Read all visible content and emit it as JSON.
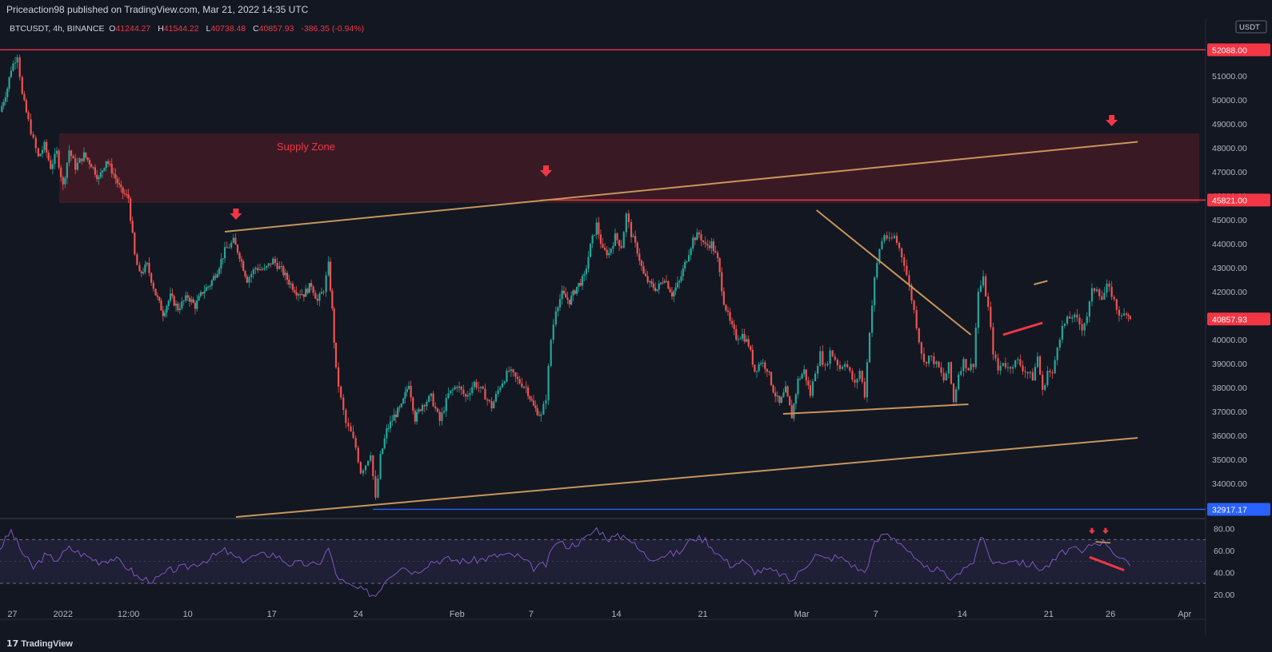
{
  "header": {
    "publisher_line": "Priceaction98 published on TradingView.com, Mar 21, 2022 14:35 UTC"
  },
  "legend": {
    "symbol": "BTCUSDT, 4h, BINANCE",
    "open_label": "O",
    "open": "41244.27",
    "high_label": "H",
    "high": "41544.22",
    "low_label": "L",
    "low": "40738.48",
    "close_label": "C",
    "close": "40857.93",
    "change": "-386.35 (-0.94%)"
  },
  "footer": {
    "brand": "TradingView",
    "logo_glyph": "17"
  },
  "colors": {
    "background": "#131722",
    "up_candle": "#26a69a",
    "down_candle": "#ef5350",
    "trendline": "#c8955a",
    "supply_zone": "#5a1e26",
    "resistance": "#f23645",
    "support": "#2962ff",
    "rsi_line": "#7e57c2"
  },
  "chart_data": {
    "type": "candlestick",
    "symbol": "BTCUSDT",
    "timeframe": "4h",
    "exchange": "BINANCE",
    "currency_label": "USDT",
    "ylim": [
      32600,
      52700
    ],
    "y_ticks": [
      34000,
      35000,
      36000,
      37000,
      38000,
      39000,
      40000,
      41000,
      42000,
      43000,
      44000,
      45000,
      46000,
      47000,
      48000,
      49000,
      50000,
      51000
    ],
    "y_tick_labels": [
      "34000.00",
      "35000.00",
      "36000.00",
      "37000.00",
      "38000.00",
      "39000.00",
      "40000.00",
      "41000.00",
      "42000.00",
      "43000.00",
      "44000.00",
      "45000.00",
      "46000.00",
      "47000.00",
      "48000.00",
      "49000.00",
      "50000.00",
      "51000.00"
    ],
    "x_tick_labels": [
      "27",
      "2022",
      "12:00",
      "10",
      "17",
      "24",
      "Feb",
      "7",
      "14",
      "21",
      "Mar",
      "7",
      "14",
      "21",
      "26",
      "Apr"
    ],
    "x_tick_days": [
      -4.6,
      -0.5,
      4.8,
      9.6,
      16.4,
      23.4,
      31.4,
      37.4,
      44.3,
      51.3,
      59.3,
      65.3,
      72.3,
      79.3,
      84.3,
      90.3
    ],
    "price_markers": [
      {
        "label": "52088.00",
        "value": 52088,
        "type": "resistance"
      },
      {
        "label": "45821.00",
        "value": 45821,
        "type": "resistance"
      },
      {
        "label": "40857.93",
        "value": 40857.93,
        "type": "last_price"
      },
      {
        "label": "32917.17",
        "value": 32917.17,
        "type": "support"
      }
    ],
    "supply_zone": {
      "label": "Supply Zone",
      "top": 48600,
      "bottom": 45700,
      "from_day": -0.8,
      "to_day": 91.5
    },
    "trendlines": [
      {
        "name": "upper-channel",
        "from": [
          12.6,
          44500
        ],
        "to": [
          86.5,
          48250
        ],
        "color": "#c8955a"
      },
      {
        "name": "lower-channel",
        "from": [
          13.5,
          32600
        ],
        "to": [
          86.5,
          35900
        ],
        "color": "#c8955a"
      },
      {
        "name": "triangle-top",
        "from": [
          60.5,
          45400
        ],
        "to": [
          73.0,
          40200
        ],
        "color": "#c8955a"
      },
      {
        "name": "triangle-bottom",
        "from": [
          57.8,
          36900
        ],
        "to": [
          72.8,
          37300
        ],
        "color": "#c8955a"
      },
      {
        "name": "small-top",
        "from": [
          78.1,
          42300
        ],
        "to": [
          79.2,
          42450
        ],
        "color": "#c8955a"
      },
      {
        "name": "divergence",
        "from": [
          75.6,
          40200
        ],
        "to": [
          78.8,
          40700
        ],
        "color": "#f23645"
      }
    ],
    "arrows": [
      {
        "day": 13.5,
        "price": 45200
      },
      {
        "day": 38.6,
        "price": 47000
      },
      {
        "day": 84.4,
        "price": 49100
      }
    ],
    "price_path": [
      [
        -5.6,
        49500
      ],
      [
        -5.0,
        50500
      ],
      [
        -4.7,
        51300
      ],
      [
        -4.2,
        51900
      ],
      [
        -3.8,
        50200
      ],
      [
        -3.3,
        49100
      ],
      [
        -2.9,
        48300
      ],
      [
        -2.5,
        47600
      ],
      [
        -2.0,
        48100
      ],
      [
        -1.5,
        47200
      ],
      [
        -1.0,
        47800
      ],
      [
        -0.5,
        46400
      ],
      [
        0.0,
        47900
      ],
      [
        0.5,
        47200
      ],
      [
        1.2,
        47700
      ],
      [
        1.8,
        47300
      ],
      [
        2.4,
        46700
      ],
      [
        3.0,
        47500
      ],
      [
        3.6,
        46900
      ],
      [
        4.2,
        46200
      ],
      [
        4.8,
        45900
      ],
      [
        5.3,
        43500
      ],
      [
        5.7,
        42700
      ],
      [
        6.3,
        43100
      ],
      [
        7.0,
        41900
      ],
      [
        7.6,
        41100
      ],
      [
        8.2,
        41800
      ],
      [
        8.8,
        41300
      ],
      [
        9.6,
        41800
      ],
      [
        10.2,
        41400
      ],
      [
        10.8,
        42000
      ],
      [
        11.4,
        42300
      ],
      [
        12.0,
        42900
      ],
      [
        12.6,
        43700
      ],
      [
        13.3,
        44100
      ],
      [
        13.8,
        43500
      ],
      [
        14.4,
        42500
      ],
      [
        15.1,
        43000
      ],
      [
        15.8,
        42900
      ],
      [
        16.5,
        43300
      ],
      [
        17.2,
        42900
      ],
      [
        17.8,
        42400
      ],
      [
        18.4,
        42000
      ],
      [
        19.0,
        41900
      ],
      [
        19.6,
        42300
      ],
      [
        20.1,
        41600
      ],
      [
        20.6,
        42100
      ],
      [
        21.0,
        43100
      ],
      [
        21.3,
        41200
      ],
      [
        21.6,
        38700
      ],
      [
        22.0,
        37500
      ],
      [
        22.4,
        36500
      ],
      [
        22.8,
        36100
      ],
      [
        23.2,
        35500
      ],
      [
        23.6,
        34500
      ],
      [
        24.0,
        34800
      ],
      [
        24.4,
        35300
      ],
      [
        24.8,
        33300
      ],
      [
        25.2,
        35100
      ],
      [
        25.7,
        36200
      ],
      [
        26.3,
        36800
      ],
      [
        26.9,
        37200
      ],
      [
        27.5,
        38200
      ],
      [
        28.0,
        36700
      ],
      [
        28.6,
        37300
      ],
      [
        29.3,
        37600
      ],
      [
        30.0,
        36600
      ],
      [
        30.7,
        37700
      ],
      [
        31.4,
        38100
      ],
      [
        32.1,
        37600
      ],
      [
        32.8,
        38200
      ],
      [
        33.5,
        37800
      ],
      [
        34.2,
        37200
      ],
      [
        34.9,
        38100
      ],
      [
        35.6,
        38700
      ],
      [
        36.3,
        38300
      ],
      [
        37.0,
        38000
      ],
      [
        37.6,
        37200
      ],
      [
        38.2,
        36800
      ],
      [
        38.6,
        37600
      ],
      [
        39.0,
        40000
      ],
      [
        39.4,
        41300
      ],
      [
        39.9,
        41900
      ],
      [
        40.5,
        41600
      ],
      [
        41.1,
        42200
      ],
      [
        41.7,
        42600
      ],
      [
        42.2,
        43900
      ],
      [
        42.7,
        44800
      ],
      [
        43.2,
        43700
      ],
      [
        43.7,
        43600
      ],
      [
        44.2,
        44300
      ],
      [
        44.7,
        43900
      ],
      [
        45.1,
        45200
      ],
      [
        45.5,
        44400
      ],
      [
        46.0,
        43700
      ],
      [
        46.5,
        42700
      ],
      [
        47.0,
        42300
      ],
      [
        47.6,
        42100
      ],
      [
        48.2,
        42600
      ],
      [
        48.8,
        41900
      ],
      [
        49.4,
        42400
      ],
      [
        50.0,
        43400
      ],
      [
        50.5,
        44200
      ],
      [
        51.0,
        44400
      ],
      [
        51.5,
        43900
      ],
      [
        52.0,
        44000
      ],
      [
        52.5,
        43300
      ],
      [
        53.0,
        41600
      ],
      [
        53.5,
        40700
      ],
      [
        54.0,
        40100
      ],
      [
        54.5,
        40200
      ],
      [
        55.0,
        39800
      ],
      [
        55.5,
        38700
      ],
      [
        56.0,
        39100
      ],
      [
        56.5,
        38800
      ],
      [
        57.0,
        37900
      ],
      [
        57.5,
        37300
      ],
      [
        58.0,
        37900
      ],
      [
        58.5,
        36800
      ],
      [
        59.0,
        38300
      ],
      [
        59.5,
        38700
      ],
      [
        60.0,
        37700
      ],
      [
        60.4,
        38700
      ],
      [
        60.8,
        39400
      ],
      [
        61.2,
        38800
      ],
      [
        61.6,
        39500
      ],
      [
        62.0,
        39200
      ],
      [
        62.4,
        38800
      ],
      [
        62.8,
        39100
      ],
      [
        63.2,
        38600
      ],
      [
        63.6,
        38100
      ],
      [
        64.0,
        38700
      ],
      [
        64.4,
        37700
      ],
      [
        64.8,
        40400
      ],
      [
        65.2,
        42500
      ],
      [
        65.6,
        43800
      ],
      [
        66.0,
        44400
      ],
      [
        66.4,
        44100
      ],
      [
        66.8,
        44300
      ],
      [
        67.2,
        43800
      ],
      [
        67.6,
        43200
      ],
      [
        68.0,
        42200
      ],
      [
        68.4,
        41200
      ],
      [
        68.8,
        40000
      ],
      [
        69.2,
        39000
      ],
      [
        69.6,
        39300
      ],
      [
        70.0,
        39100
      ],
      [
        70.4,
        38800
      ],
      [
        70.8,
        38300
      ],
      [
        71.2,
        38900
      ],
      [
        71.6,
        37400
      ],
      [
        72.0,
        38600
      ],
      [
        72.4,
        39100
      ],
      [
        72.8,
        38800
      ],
      [
        73.2,
        39000
      ],
      [
        73.6,
        42000
      ],
      [
        74.0,
        42500
      ],
      [
        74.4,
        41300
      ],
      [
        74.8,
        39500
      ],
      [
        75.2,
        38700
      ],
      [
        75.6,
        39100
      ],
      [
        76.0,
        38800
      ],
      [
        76.4,
        39000
      ],
      [
        76.8,
        39100
      ],
      [
        77.2,
        38800
      ],
      [
        77.6,
        38600
      ],
      [
        78.0,
        38400
      ],
      [
        78.4,
        39300
      ],
      [
        78.8,
        37800
      ],
      [
        79.2,
        38700
      ],
      [
        79.6,
        38500
      ],
      [
        80.0,
        39800
      ],
      [
        80.4,
        40500
      ],
      [
        80.8,
        40800
      ],
      [
        81.2,
        41000
      ],
      [
        81.6,
        40800
      ],
      [
        82.0,
        40500
      ],
      [
        82.4,
        41000
      ],
      [
        82.8,
        42000
      ],
      [
        83.2,
        42200
      ],
      [
        83.6,
        41700
      ],
      [
        84.0,
        42200
      ],
      [
        84.4,
        41900
      ],
      [
        84.8,
        41300
      ],
      [
        85.2,
        40900
      ],
      [
        85.6,
        41200
      ],
      [
        85.9,
        40860
      ]
    ],
    "rsi": {
      "name": "RSI",
      "ylim": [
        14,
        87
      ],
      "ticks": [
        20,
        40,
        60,
        80
      ],
      "tick_labels": [
        "20.00",
        "40.00",
        "60.00",
        "80.00"
      ],
      "band": [
        30,
        70
      ],
      "midline": 50,
      "values": [
        [
          -5.6,
          62
        ],
        [
          -4.7,
          78
        ],
        [
          -3.8,
          58
        ],
        [
          -2.9,
          44
        ],
        [
          -2.0,
          55
        ],
        [
          -1.0,
          52
        ],
        [
          0.0,
          62
        ],
        [
          1.2,
          56
        ],
        [
          2.4,
          50
        ],
        [
          3.6,
          53
        ],
        [
          4.8,
          44
        ],
        [
          5.7,
          34
        ],
        [
          7.0,
          33
        ],
        [
          8.2,
          42
        ],
        [
          9.6,
          45
        ],
        [
          11.4,
          53
        ],
        [
          12.6,
          60
        ],
        [
          13.8,
          51
        ],
        [
          15.1,
          55
        ],
        [
          16.5,
          57
        ],
        [
          17.8,
          48
        ],
        [
          19.0,
          48
        ],
        [
          20.1,
          46
        ],
        [
          21.0,
          62
        ],
        [
          21.6,
          38
        ],
        [
          22.4,
          29
        ],
        [
          23.6,
          24
        ],
        [
          24.8,
          19
        ],
        [
          25.7,
          35
        ],
        [
          26.9,
          46
        ],
        [
          28.0,
          40
        ],
        [
          29.3,
          50
        ],
        [
          30.7,
          52
        ],
        [
          32.1,
          50
        ],
        [
          33.5,
          52
        ],
        [
          34.9,
          56
        ],
        [
          36.3,
          55
        ],
        [
          37.6,
          44
        ],
        [
          38.6,
          47
        ],
        [
          39.4,
          68
        ],
        [
          40.5,
          64
        ],
        [
          41.7,
          70
        ],
        [
          42.7,
          80
        ],
        [
          43.7,
          71
        ],
        [
          45.1,
          74
        ],
        [
          46.0,
          62
        ],
        [
          47.0,
          53
        ],
        [
          48.2,
          56
        ],
        [
          49.4,
          58
        ],
        [
          50.5,
          72
        ],
        [
          51.5,
          70
        ],
        [
          52.5,
          57
        ],
        [
          53.5,
          47
        ],
        [
          54.5,
          50
        ],
        [
          55.5,
          41
        ],
        [
          56.5,
          42
        ],
        [
          57.5,
          39
        ],
        [
          58.5,
          32
        ],
        [
          59.5,
          45
        ],
        [
          60.4,
          56
        ],
        [
          61.2,
          52
        ],
        [
          62.0,
          54
        ],
        [
          62.8,
          52
        ],
        [
          63.6,
          45
        ],
        [
          64.4,
          40
        ],
        [
          65.2,
          66
        ],
        [
          66.0,
          76
        ],
        [
          66.8,
          72
        ],
        [
          67.6,
          64
        ],
        [
          68.4,
          52
        ],
        [
          69.2,
          43
        ],
        [
          70.0,
          44
        ],
        [
          70.8,
          38
        ],
        [
          71.6,
          33
        ],
        [
          72.4,
          46
        ],
        [
          73.2,
          48
        ],
        [
          73.6,
          67
        ],
        [
          74.0,
          70
        ],
        [
          74.8,
          48
        ],
        [
          75.6,
          50
        ],
        [
          76.4,
          52
        ],
        [
          77.2,
          48
        ],
        [
          78.0,
          47
        ],
        [
          78.8,
          43
        ],
        [
          79.6,
          49
        ],
        [
          80.4,
          58
        ],
        [
          81.2,
          62
        ],
        [
          82.0,
          57
        ],
        [
          82.8,
          66
        ],
        [
          83.2,
          68
        ],
        [
          84.0,
          67
        ],
        [
          84.8,
          56
        ],
        [
          85.6,
          48
        ],
        [
          85.9,
          46
        ]
      ],
      "annotations": {
        "top_line": {
          "from": [
            83.1,
            68
          ],
          "to": [
            84.3,
            67
          ],
          "color": "#c8955a"
        },
        "divergence": {
          "from": [
            82.6,
            54
          ],
          "to": [
            85.4,
            42
          ],
          "color": "#f23645"
        },
        "arrows": [
          {
            "day": 82.8,
            "value": 77
          },
          {
            "day": 83.9,
            "value": 77
          }
        ]
      }
    }
  }
}
